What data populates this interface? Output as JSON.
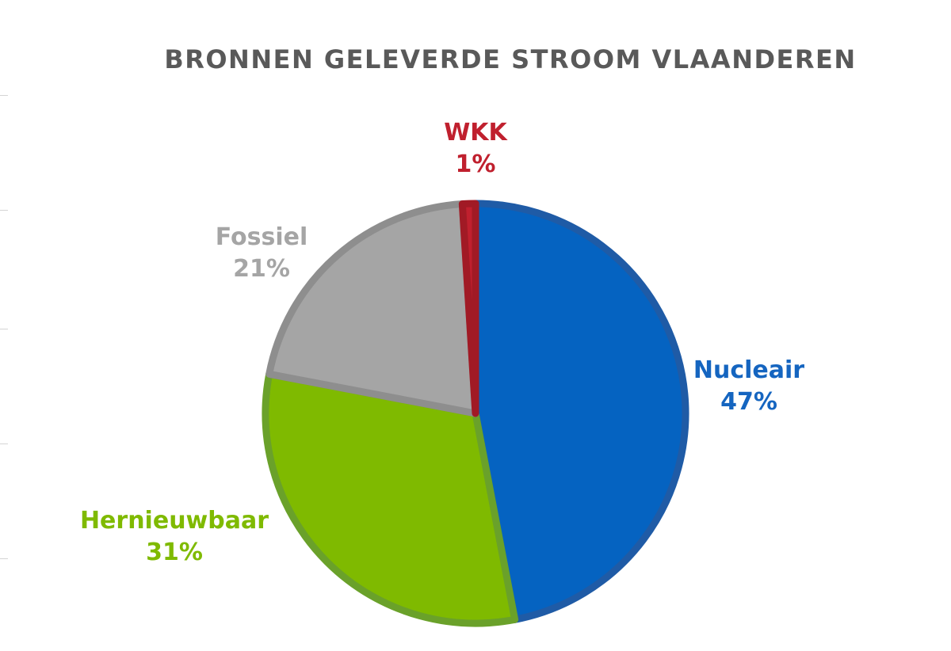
{
  "chart_data": {
    "type": "pie",
    "title": "BRONNEN GELEVERDE STROOM VLAANDEREN",
    "slices": [
      {
        "name": "Nucleair",
        "value": 47,
        "label": "47%",
        "color": "#0563C1",
        "border": "#1F5BA6"
      },
      {
        "name": "Hernieuwbaar",
        "value": 31,
        "label": "31%",
        "color": "#7FBA00",
        "border": "#6AA12A"
      },
      {
        "name": "Fossiel",
        "value": 21,
        "label": "21%",
        "color": "#A5A5A5",
        "border": "#8E8E8E"
      },
      {
        "name": "WKK",
        "value": 1,
        "label": "1%",
        "color": "#C0202E",
        "border": "#A11A25"
      }
    ],
    "label_colors": {
      "Nucleair": "#1565C0",
      "Hernieuwbaar": "#7FBA00",
      "Fossiel": "#A5A5A5",
      "WKK": "#C0202E"
    },
    "legend": "none"
  }
}
